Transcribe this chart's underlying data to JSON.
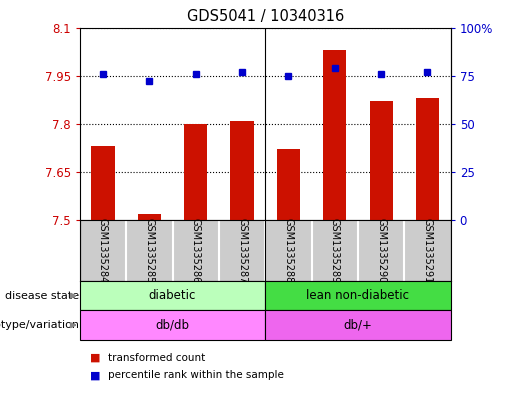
{
  "title": "GDS5041 / 10340316",
  "samples": [
    "GSM1335284",
    "GSM1335285",
    "GSM1335286",
    "GSM1335287",
    "GSM1335288",
    "GSM1335289",
    "GSM1335290",
    "GSM1335291"
  ],
  "transformed_count": [
    7.73,
    7.52,
    7.8,
    7.81,
    7.72,
    8.03,
    7.87,
    7.88
  ],
  "percentile_rank": [
    76,
    72,
    76,
    77,
    75,
    79,
    76,
    77
  ],
  "bar_color": "#cc1100",
  "dot_color": "#0000cc",
  "ymin": 7.5,
  "ymax": 8.1,
  "yticks": [
    7.5,
    7.65,
    7.8,
    7.95,
    8.1
  ],
  "ytick_labels": [
    "7.5",
    "7.65",
    "7.8",
    "7.95",
    "8.1"
  ],
  "y2min": 0,
  "y2max": 100,
  "y2ticks": [
    0,
    25,
    50,
    75,
    100
  ],
  "y2tick_labels": [
    "0",
    "25",
    "50",
    "75",
    "100%"
  ],
  "disease_state": [
    {
      "label": "diabetic",
      "start": 0,
      "end": 4,
      "color": "#bbffbb"
    },
    {
      "label": "lean non-diabetic",
      "start": 4,
      "end": 8,
      "color": "#44dd44"
    }
  ],
  "genotype": [
    {
      "label": "db/db",
      "start": 0,
      "end": 4,
      "color": "#ff88ff"
    },
    {
      "label": "db/+",
      "start": 4,
      "end": 8,
      "color": "#ee66ee"
    }
  ],
  "sample_box_color": "#cccccc",
  "disease_state_label": "disease state",
  "genotype_label": "genotype/variation",
  "legend_bar_label": "transformed count",
  "legend_dot_label": "percentile rank within the sample",
  "background_color": "#ffffff",
  "tick_label_color_left": "#cc0000",
  "tick_label_color_right": "#0000cc",
  "group_separator": 3.5
}
